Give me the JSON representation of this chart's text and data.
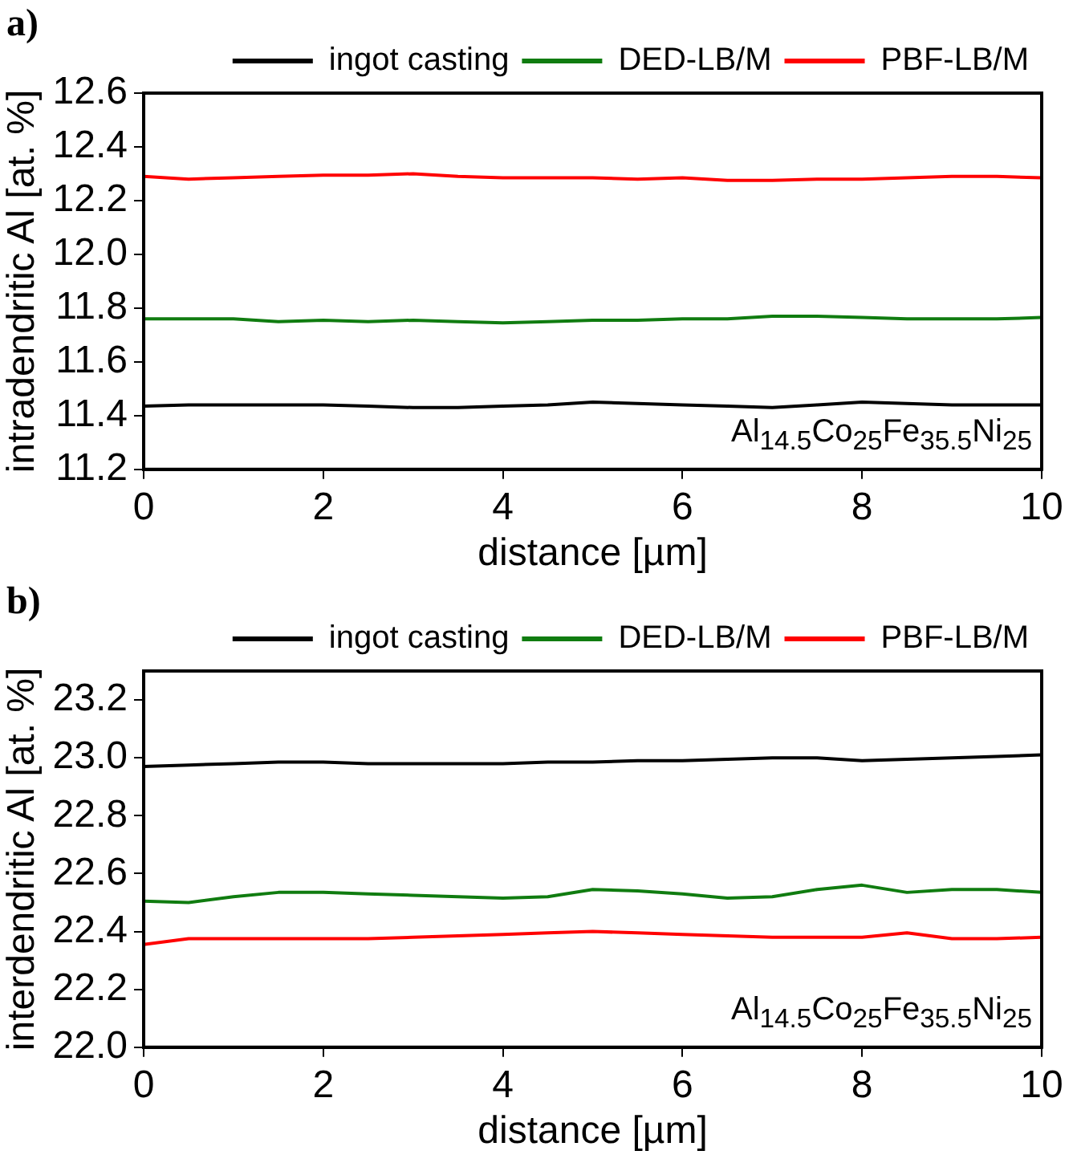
{
  "chart_data": [
    {
      "type": "line",
      "title": "a)",
      "xlabel": "distance [µm]",
      "ylabel": "intradendritic Al [at. %]",
      "annotations": [
        "Al$_{14.5}$Co$_{25}$Fe$_{35.5}$Ni$_{25}$"
      ],
      "x": [
        0,
        0.5,
        1,
        1.5,
        2,
        2.5,
        3,
        3.5,
        4,
        4.5,
        5,
        5.5,
        6,
        6.5,
        7,
        7.5,
        8,
        8.5,
        9,
        9.5,
        10
      ],
      "series": [
        {
          "name": "ingot casting",
          "color": "#000000",
          "values": [
            11.435,
            11.44,
            11.44,
            11.44,
            11.44,
            11.435,
            11.43,
            11.43,
            11.435,
            11.44,
            11.45,
            11.445,
            11.44,
            11.435,
            11.43,
            11.44,
            11.45,
            11.445,
            11.44,
            11.44,
            11.44
          ]
        },
        {
          "name": "DED-LB/M",
          "color": "#107c10",
          "values": [
            11.76,
            11.76,
            11.76,
            11.75,
            11.755,
            11.75,
            11.755,
            11.75,
            11.745,
            11.75,
            11.755,
            11.755,
            11.76,
            11.76,
            11.77,
            11.77,
            11.765,
            11.76,
            11.76,
            11.76,
            11.765
          ]
        },
        {
          "name": "PBF-LB/M",
          "color": "#ff0000",
          "values": [
            12.29,
            12.28,
            12.285,
            12.29,
            12.295,
            12.295,
            12.3,
            12.29,
            12.285,
            12.285,
            12.285,
            12.28,
            12.285,
            12.275,
            12.275,
            12.28,
            12.28,
            12.285,
            12.29,
            12.29,
            12.285
          ]
        }
      ],
      "xlim": [
        0,
        10
      ],
      "xticks": [
        0,
        2,
        4,
        6,
        8,
        10
      ],
      "ylim": [
        11.2,
        12.6
      ],
      "yticks": [
        {
          "value": 11.2,
          "label": "11.2"
        },
        {
          "value": 11.4,
          "label": "11.4"
        },
        {
          "value": 11.6,
          "label": "11.6"
        },
        {
          "value": 11.8,
          "label": "11.8"
        },
        {
          "value": 12.0,
          "label": "12.0"
        },
        {
          "value": 12.2,
          "label": "12.2"
        },
        {
          "value": 12.4,
          "label": "12.4"
        },
        {
          "value": 12.6,
          "label": "12.6"
        }
      ],
      "legend": "top",
      "grid": false,
      "marker": "none",
      "line_style": "solid"
    },
    {
      "type": "line",
      "title": "b)",
      "xlabel": "distance [µm]",
      "ylabel": "interdendritic Al [at. %]",
      "annotations": [
        "Al$_{14.5}$Co$_{25}$Fe$_{35.5}$Ni$_{25}$"
      ],
      "x": [
        0,
        0.5,
        1,
        1.5,
        2,
        2.5,
        3,
        3.5,
        4,
        4.5,
        5,
        5.5,
        6,
        6.5,
        7,
        7.5,
        8,
        8.5,
        9,
        9.5,
        10
      ],
      "series": [
        {
          "name": "ingot casting",
          "color": "#000000",
          "values": [
            22.97,
            22.975,
            22.98,
            22.985,
            22.985,
            22.98,
            22.98,
            22.98,
            22.98,
            22.985,
            22.985,
            22.99,
            22.99,
            22.995,
            23.0,
            23.0,
            22.99,
            22.995,
            23.0,
            23.005,
            23.01
          ]
        },
        {
          "name": "DED-LB/M",
          "color": "#107c10",
          "values": [
            22.505,
            22.5,
            22.52,
            22.535,
            22.535,
            22.53,
            22.525,
            22.52,
            22.515,
            22.52,
            22.545,
            22.54,
            22.53,
            22.515,
            22.52,
            22.545,
            22.56,
            22.535,
            22.545,
            22.545,
            22.535
          ]
        },
        {
          "name": "PBF-LB/M",
          "color": "#ff0000",
          "values": [
            22.355,
            22.375,
            22.375,
            22.375,
            22.375,
            22.375,
            22.38,
            22.385,
            22.39,
            22.395,
            22.4,
            22.395,
            22.39,
            22.385,
            22.38,
            22.38,
            22.38,
            22.395,
            22.375,
            22.375,
            22.38
          ]
        }
      ],
      "xlim": [
        0,
        10
      ],
      "xticks": [
        0,
        2,
        4,
        6,
        8,
        10
      ],
      "ylim": [
        22.0,
        23.3
      ],
      "yticks": [
        {
          "value": 22.0,
          "label": "22.0"
        },
        {
          "value": 22.2,
          "label": "22.2"
        },
        {
          "value": 22.4,
          "label": "22.4"
        },
        {
          "value": 22.6,
          "label": "22.6"
        },
        {
          "value": 22.8,
          "label": "22.8"
        },
        {
          "value": 23.0,
          "label": "23.0"
        },
        {
          "value": 23.2,
          "label": "23.2"
        }
      ],
      "legend": "top",
      "grid": false,
      "marker": "none",
      "line_style": "solid"
    }
  ]
}
